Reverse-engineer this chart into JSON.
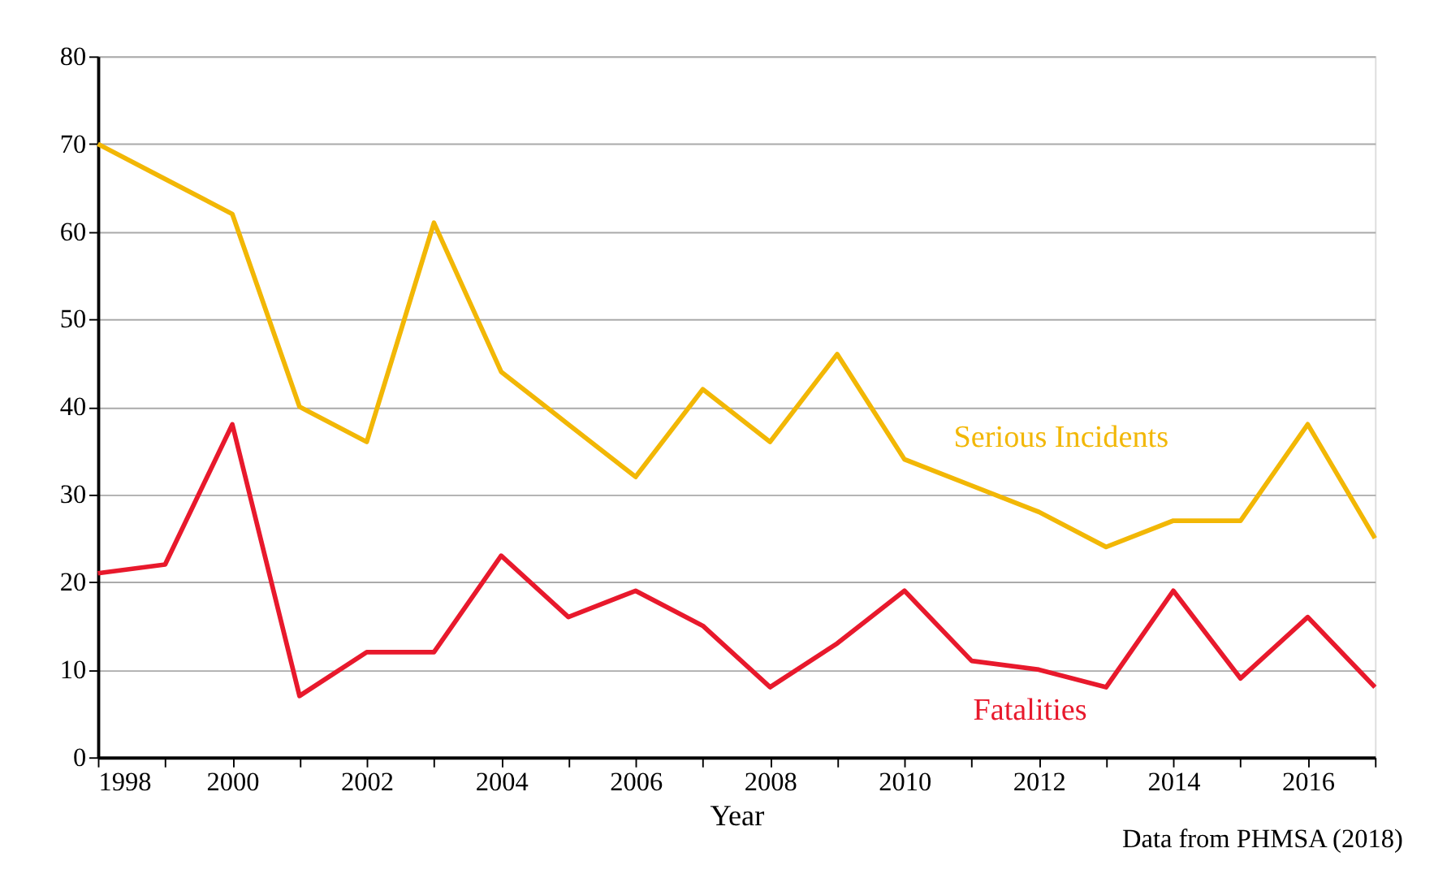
{
  "chart_data": {
    "type": "line",
    "xlabel": "Year",
    "x": [
      1998,
      1999,
      2000,
      2001,
      2002,
      2003,
      2004,
      2005,
      2006,
      2007,
      2008,
      2009,
      2010,
      2011,
      2012,
      2013,
      2014,
      2015,
      2016,
      2017
    ],
    "series": [
      {
        "name": "Serious Incidents",
        "color": "#f2b705",
        "values": [
          70,
          66,
          62,
          40,
          36,
          61,
          44,
          38,
          32,
          42,
          36,
          46,
          34,
          31,
          28,
          24,
          27,
          27,
          38,
          25
        ]
      },
      {
        "name": "Fatalities",
        "color": "#e8192c",
        "values": [
          21,
          22,
          38,
          7,
          12,
          12,
          23,
          16,
          19,
          15,
          8,
          13,
          19,
          11,
          10,
          8,
          19,
          9,
          16,
          8
        ]
      }
    ],
    "xlim": [
      1998,
      2017
    ],
    "xticks": [
      1998,
      {
        "value": 1999,
        "label": null
      },
      2000,
      {
        "value": 2001,
        "label": null
      },
      2002,
      {
        "value": 2003,
        "label": null
      },
      2004,
      {
        "value": 2005,
        "label": null
      },
      2006,
      {
        "value": 2007,
        "label": null
      },
      2008,
      {
        "value": 2009,
        "label": null
      },
      2010,
      {
        "value": 2011,
        "label": null
      },
      2012,
      {
        "value": 2013,
        "label": null
      },
      2014,
      {
        "value": 2015,
        "label": null
      },
      2016,
      {
        "value": 2017,
        "label": null
      }
    ],
    "ylim": [
      0,
      80
    ],
    "yticks": [
      0,
      10,
      20,
      30,
      40,
      50,
      60,
      70,
      80
    ],
    "grid": "y",
    "legend": false,
    "marker": "none",
    "line_style": "solid",
    "annotations": [
      "Data from PHMSA (2018)"
    ]
  }
}
